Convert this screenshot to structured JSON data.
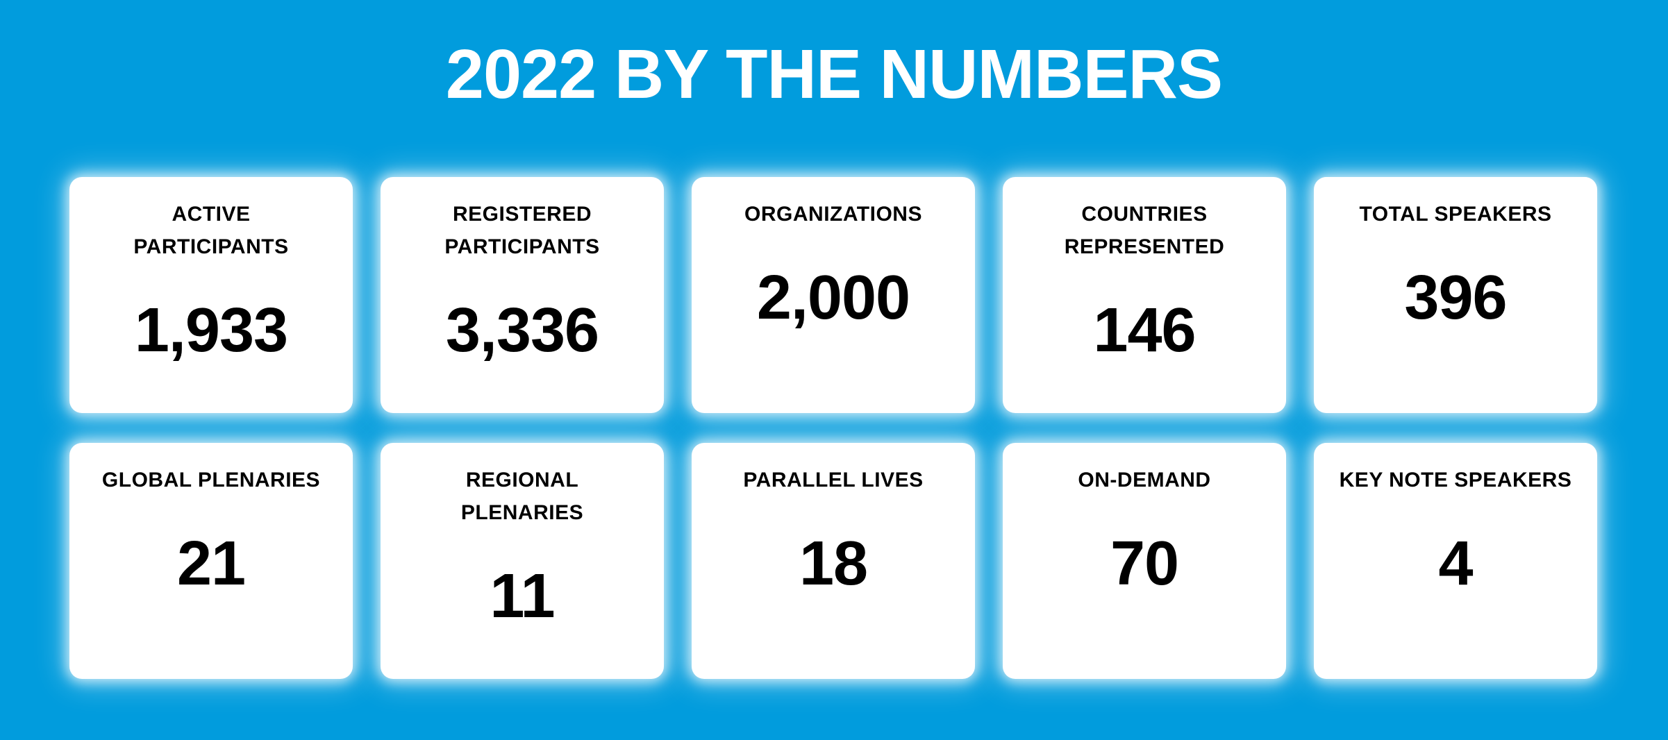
{
  "title": "2022 BY THE NUMBERS",
  "colors": {
    "background": "#019CDD",
    "card_background": "#FFFFFF",
    "title_text": "#FFFFFF",
    "stat_text": "#000000"
  },
  "cards": [
    {
      "label": "ACTIVE\nPARTICIPANTS",
      "value": "1,933"
    },
    {
      "label": "REGISTERED\nPARTICIPANTS",
      "value": "3,336"
    },
    {
      "label": "ORGANIZATIONS",
      "value": "2,000"
    },
    {
      "label": "COUNTRIES\nREPRESENTED",
      "value": "146"
    },
    {
      "label": "TOTAL SPEAKERS",
      "value": "396"
    },
    {
      "label": "GLOBAL PLENARIES",
      "value": "21"
    },
    {
      "label": "REGIONAL\nPLENARIES",
      "value": "11"
    },
    {
      "label": "PARALLEL LIVES",
      "value": "18"
    },
    {
      "label": "ON-DEMAND",
      "value": "70"
    },
    {
      "label": "KEY NOTE SPEAKERS",
      "value": "4"
    }
  ],
  "chart_data": {
    "type": "table",
    "title": "2022 BY THE NUMBERS",
    "categories": [
      "Active Participants",
      "Registered Participants",
      "Organizations",
      "Countries Represented",
      "Total Speakers",
      "Global Plenaries",
      "Regional Plenaries",
      "Parallel Lives",
      "On-Demand",
      "Key Note Speakers"
    ],
    "values": [
      1933,
      3336,
      2000,
      146,
      396,
      21,
      11,
      18,
      70,
      4
    ],
    "layout": "stat cards, 2 rows x 5 columns",
    "legend": false,
    "grid": false
  }
}
